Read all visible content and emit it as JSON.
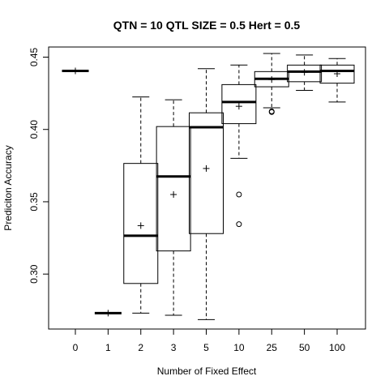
{
  "chart_data": {
    "type": "boxplot",
    "title": "QTN = 10 QTL SIZE = 0.5 Hert = 0.5",
    "xlabel": "Number of Fixed Effect",
    "ylabel": "Prediciton Accuracy",
    "ylim": [
      0.262,
      0.457
    ],
    "yticks": [
      0.3,
      0.35,
      0.4,
      0.45
    ],
    "ytick_labels": [
      "0.30",
      "0.35",
      "0.40",
      "0.45"
    ],
    "grid": false,
    "legend": "none",
    "categories": [
      "0",
      "1",
      "2",
      "3",
      "5",
      "10",
      "25",
      "50",
      "100"
    ],
    "boxes": [
      {
        "min": 0.4405,
        "q1": 0.4405,
        "median": 0.4405,
        "q3": 0.4405,
        "max": 0.4405,
        "mean": 0.4405,
        "outliers": []
      },
      {
        "min": 0.273,
        "q1": 0.273,
        "median": 0.273,
        "q3": 0.273,
        "max": 0.273,
        "mean": 0.273,
        "outliers": []
      },
      {
        "min": 0.273,
        "q1": 0.2935,
        "median": 0.3265,
        "q3": 0.3765,
        "max": 0.4225,
        "mean": 0.3335,
        "outliers": []
      },
      {
        "min": 0.2715,
        "q1": 0.316,
        "median": 0.3675,
        "q3": 0.402,
        "max": 0.4205,
        "mean": 0.355,
        "outliers": []
      },
      {
        "min": 0.2685,
        "q1": 0.328,
        "median": 0.4015,
        "q3": 0.4115,
        "max": 0.442,
        "mean": 0.373,
        "outliers": []
      },
      {
        "min": 0.38,
        "q1": 0.404,
        "median": 0.419,
        "q3": 0.431,
        "max": 0.4445,
        "mean": 0.416,
        "outliers": [
          0.355,
          0.3345
        ]
      },
      {
        "min": 0.415,
        "q1": 0.4295,
        "median": 0.435,
        "q3": 0.44,
        "max": 0.4525,
        "mean": 0.4345,
        "outliers": [
          0.4125,
          0.412
        ]
      },
      {
        "min": 0.427,
        "q1": 0.433,
        "median": 0.44,
        "q3": 0.4445,
        "max": 0.4515,
        "mean": 0.4395,
        "outliers": []
      },
      {
        "min": 0.419,
        "q1": 0.432,
        "median": 0.4405,
        "q3": 0.4445,
        "max": 0.449,
        "mean": 0.4385,
        "outliers": []
      }
    ]
  }
}
